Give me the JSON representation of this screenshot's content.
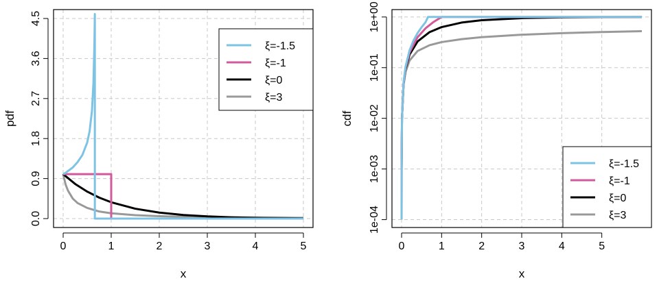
{
  "chart_data": [
    {
      "type": "line",
      "xlabel": "x",
      "ylabel": "pdf",
      "xlim": [
        -0.2,
        5.2
      ],
      "ylim": [
        -0.2,
        4.7
      ],
      "xticks": [
        0,
        1,
        2,
        3,
        4,
        5
      ],
      "yticks": [
        0.0,
        0.9,
        1.8,
        2.7,
        3.6,
        4.5
      ],
      "ytick_labels": [
        "0.0",
        "0.9",
        "1.8",
        "2.7",
        "3.6",
        "4.5"
      ],
      "grid": true,
      "legend_position": "top-right",
      "series": [
        {
          "name": "ξ=-1.5",
          "color": "#7ec3e3",
          "width": 3,
          "x": [
            0,
            0.05,
            0.1,
            0.2,
            0.3,
            0.4,
            0.5,
            0.55,
            0.6,
            0.63,
            0.65,
            0.6596,
            0.6596,
            0.67,
            0.8,
            1.0,
            5.0
          ],
          "y": [
            1.0,
            1.03,
            1.07,
            1.15,
            1.27,
            1.43,
            1.71,
            1.96,
            2.43,
            3.05,
            3.9,
            4.6,
            0,
            0,
            0,
            0,
            0
          ]
        },
        {
          "name": "ξ=-1",
          "color": "#d2599b",
          "width": 3,
          "x": [
            0,
            0.5,
            1.0,
            1.0,
            1.5,
            3,
            5
          ],
          "y": [
            1,
            1,
            1,
            0,
            0,
            0,
            0
          ]
        },
        {
          "name": "ξ=0",
          "color": "#000000",
          "width": 3,
          "x": [
            0,
            0.25,
            0.5,
            0.75,
            1.0,
            1.5,
            2.0,
            2.5,
            3.0,
            3.5,
            4.0,
            4.5,
            5.0
          ],
          "y": [
            1.0,
            0.779,
            0.607,
            0.472,
            0.368,
            0.223,
            0.135,
            0.082,
            0.05,
            0.03,
            0.018,
            0.011,
            0.007
          ]
        },
        {
          "name": "ξ=3",
          "color": "#999999",
          "width": 3,
          "x": [
            0,
            0.05,
            0.1,
            0.2,
            0.3,
            0.5,
            0.75,
            1.0,
            1.5,
            2.0,
            2.5,
            3.0,
            4.0,
            5.0
          ],
          "y": [
            1.0,
            0.77,
            0.63,
            0.45,
            0.35,
            0.24,
            0.16,
            0.12,
            0.078,
            0.055,
            0.042,
            0.033,
            0.023,
            0.017
          ]
        }
      ],
      "legend": [
        "ξ=-1.5",
        "ξ=-1",
        "ξ=0",
        "ξ=3"
      ]
    },
    {
      "type": "line",
      "xlabel": "x",
      "ylabel": "cdf",
      "yscale": "log",
      "xlim": [
        -0.24,
        6.24
      ],
      "ylim": [
        7e-05,
        1.4
      ],
      "xticks": [
        0,
        1,
        2,
        3,
        4,
        5
      ],
      "yticks": [
        0.0001,
        0.001,
        0.01,
        0.1,
        1
      ],
      "ytick_labels": [
        "1e-04",
        "1e-03",
        "1e-02",
        "1e-01",
        "1e+00"
      ],
      "grid": true,
      "legend_position": "bottom-right",
      "series": [
        {
          "name": "ξ=-1.5",
          "color": "#7ec3e3",
          "width": 3,
          "x": [
            0.0001,
            0.001,
            0.01,
            0.05,
            0.1,
            0.2,
            0.3,
            0.4,
            0.5,
            0.6,
            0.6596,
            1.0,
            6.0
          ],
          "y": [
            0.0001,
            0.001,
            0.00997,
            0.0508,
            0.1052,
            0.2213,
            0.3465,
            0.4815,
            0.6286,
            0.7923,
            1.0,
            1.0,
            1.0
          ]
        },
        {
          "name": "ξ=-1",
          "color": "#d2599b",
          "width": 3,
          "x": [
            0.0001,
            0.001,
            0.01,
            0.05,
            0.1,
            0.2,
            0.4,
            0.6,
            0.8,
            1.0,
            6.0
          ],
          "y": [
            0.0001,
            0.001,
            0.01,
            0.05,
            0.1,
            0.2,
            0.4,
            0.6,
            0.8,
            1.0,
            1.0
          ]
        },
        {
          "name": "ξ=0",
          "color": "#000000",
          "width": 3,
          "x": [
            0.0001,
            0.001,
            0.01,
            0.05,
            0.1,
            0.2,
            0.4,
            0.7,
            1.0,
            1.5,
            2.0,
            3.0,
            4.0,
            5.0,
            6.0
          ],
          "y": [
            0.0001,
            0.001,
            0.00995,
            0.0488,
            0.0952,
            0.1813,
            0.3297,
            0.5034,
            0.6321,
            0.7769,
            0.8647,
            0.9502,
            0.9817,
            0.9933,
            0.9975
          ]
        },
        {
          "name": "ξ=3",
          "color": "#999999",
          "width": 3,
          "x": [
            0.0001,
            0.001,
            0.01,
            0.05,
            0.1,
            0.2,
            0.4,
            0.7,
            1.0,
            1.5,
            2.0,
            3.0,
            4.0,
            5.0,
            6.0
          ],
          "y": [
            0.0001,
            0.001,
            0.0098,
            0.0455,
            0.0825,
            0.1386,
            0.213,
            0.2778,
            0.3195,
            0.366,
            0.3999,
            0.4471,
            0.48,
            0.5051,
            0.5252
          ]
        }
      ],
      "legend": [
        "ξ=-1.5",
        "ξ=-1",
        "ξ=0",
        "ξ=3"
      ]
    }
  ]
}
